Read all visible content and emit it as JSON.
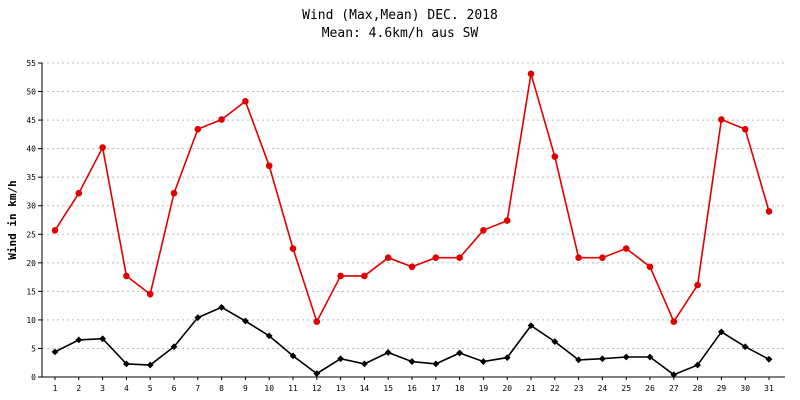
{
  "chart_data": {
    "type": "line",
    "title": "Wind (Max,Mean) DEC. 2018",
    "subtitle": "Mean: 4.6km/h aus SW",
    "xlabel": "",
    "ylabel": "Wind in km/h",
    "ylim": [
      0,
      55
    ],
    "yticks": [
      0,
      5,
      10,
      15,
      20,
      25,
      30,
      35,
      40,
      45,
      50,
      55
    ],
    "grid": true,
    "x": [
      1,
      2,
      3,
      4,
      5,
      6,
      7,
      8,
      9,
      10,
      11,
      12,
      13,
      14,
      15,
      16,
      17,
      18,
      19,
      20,
      21,
      22,
      23,
      24,
      25,
      26,
      27,
      28,
      29,
      30,
      31
    ],
    "series": [
      {
        "color": "#e00000",
        "marker": "circle",
        "values": [
          25.7,
          32.2,
          40.2,
          17.7,
          14.5,
          32.2,
          43.4,
          45.1,
          48.3,
          37.0,
          22.5,
          9.7,
          17.7,
          17.7,
          20.9,
          19.3,
          20.9,
          20.9,
          25.7,
          27.4,
          53.1,
          38.6,
          20.9,
          20.9,
          22.5,
          19.3,
          9.7,
          16.1,
          45.1,
          43.4,
          29.0
        ]
      },
      {
        "color": "#000000",
        "marker": "diamond",
        "values": [
          4.4,
          6.5,
          6.7,
          2.3,
          2.1,
          5.3,
          10.4,
          12.2,
          9.8,
          7.2,
          3.7,
          0.6,
          3.2,
          2.3,
          4.3,
          2.7,
          2.3,
          4.2,
          2.7,
          3.4,
          9.0,
          6.2,
          3.0,
          3.2,
          3.5,
          3.5,
          0.4,
          2.1,
          7.9,
          5.3,
          3.1
        ]
      }
    ]
  }
}
